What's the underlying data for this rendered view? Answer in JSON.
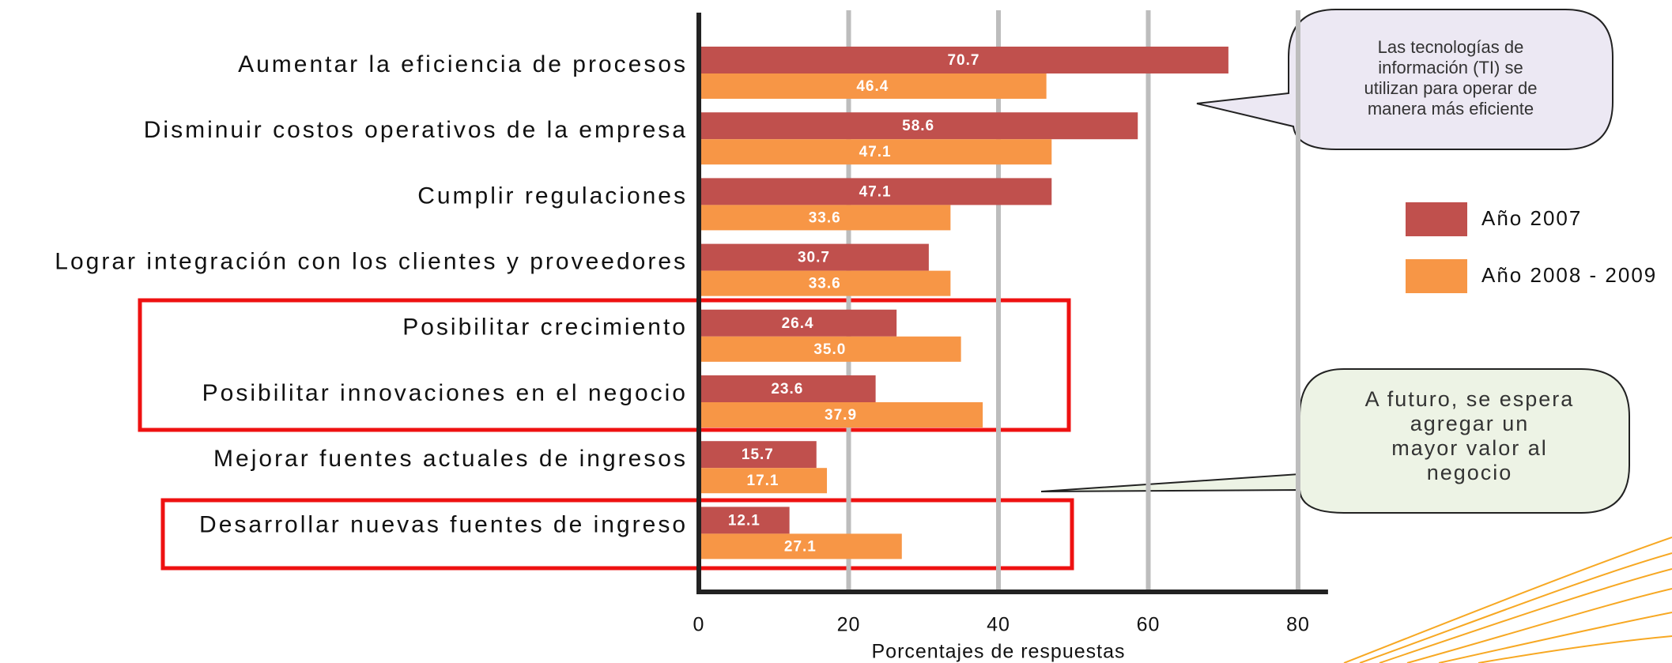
{
  "chart_data": {
    "type": "hbar",
    "categories": [
      "Aumentar la eficiencia de procesos",
      "Disminuir costos operativos de la empresa",
      "Cumplir regulaciones",
      "Lograr integración con los clientes y proveedores",
      "Posibilitar crecimiento",
      "Posibilitar innovaciones en el negocio",
      "Mejorar fuentes actuales de ingresos",
      "Desarrollar nuevas fuentes de ingreso"
    ],
    "series": [
      {
        "name": "Año 2007",
        "color": "#c0504d",
        "values": [
          70.7,
          58.6,
          47.1,
          30.7,
          26.4,
          23.6,
          15.7,
          12.1
        ],
        "value_labels": [
          "70.7",
          "58.6",
          "47.1",
          "30.7",
          "26.4",
          "23.6",
          "15.7",
          "12.1"
        ]
      },
      {
        "name": "Año 2008 - 2009",
        "color": "#f79646",
        "values": [
          46.4,
          47.1,
          33.6,
          33.6,
          35.0,
          37.9,
          17.1,
          27.1
        ],
        "value_labels": [
          "46.4",
          "47.1",
          "33.6",
          "33.6",
          "35.0",
          "37.9",
          "17.1",
          "27.1"
        ]
      }
    ],
    "xlabel": "Porcentajes de respuestas",
    "xlim": [
      0,
      84
    ],
    "xticks": [
      0,
      20,
      40,
      60,
      80
    ],
    "grid": true,
    "annotations": [
      [
        "Las tecnologías de",
        "información (TI) se",
        "utilizan para operar de",
        "manera más eficiente"
      ],
      [
        "A futuro, se espera",
        "agregar un",
        "mayor valor al",
        "negocio"
      ]
    ]
  }
}
